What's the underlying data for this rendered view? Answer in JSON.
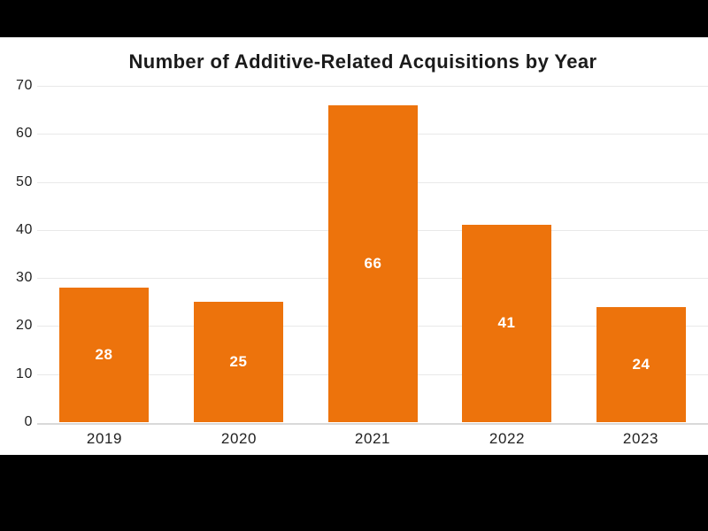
{
  "window": {
    "letterbox_color": "#000000",
    "background_color": "#FFFFFF"
  },
  "chart_data": {
    "type": "bar",
    "title": "Number of Additive-Related Acquisitions by Year",
    "categories": [
      "2019",
      "2020",
      "2021",
      "2022",
      "2023"
    ],
    "values": [
      28,
      25,
      66,
      41,
      24
    ],
    "bar_labels": [
      "28",
      "25",
      "66",
      "41",
      "24"
    ],
    "xlabel": "",
    "ylabel": "",
    "ylim": [
      0,
      70
    ],
    "yticks": [
      0,
      10,
      20,
      30,
      40,
      50,
      60,
      70
    ],
    "grid": "horizontal",
    "legend": "none",
    "bar_color": "#ED730C",
    "bar_label_color": "#FFFFFF",
    "title_color": "#1B1B1B",
    "tick_label_color": "#222222",
    "gridline_color": "#E9E9E9",
    "axis_line_color": "#D9D9D9",
    "plot_background": "#FFFFFF"
  }
}
